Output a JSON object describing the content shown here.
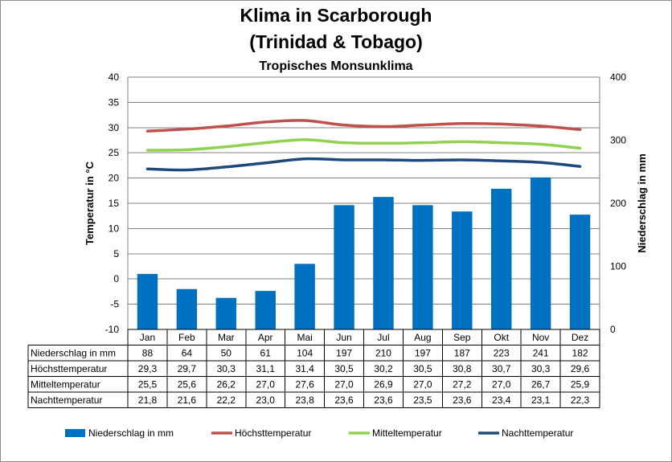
{
  "title_line1": "Klima in Scarborough",
  "title_line2": "(Trinidad & Tobago)",
  "subtitle": "Tropisches Monsunklima",
  "colors": {
    "bar": "#0070C0",
    "hoechst": "#C0504D",
    "mittel": "#92D050",
    "nacht": "#1F497D",
    "grid": "#808080"
  },
  "chart_data": {
    "type": "bar",
    "categories": [
      "Jan",
      "Feb",
      "Mar",
      "Apr",
      "Mai",
      "Jun",
      "Jul",
      "Aug",
      "Sep",
      "Okt",
      "Nov",
      "Dez"
    ],
    "series": [
      {
        "name": "Niederschlag in mm",
        "type": "bar",
        "axis": "right",
        "values": [
          88,
          64,
          50,
          61,
          104,
          197,
          210,
          197,
          187,
          223,
          241,
          182
        ]
      },
      {
        "name": "Höchsttemperatur",
        "type": "line",
        "axis": "left",
        "values": [
          "29,3",
          "29,7",
          "30,3",
          "31,1",
          "31,4",
          "30,5",
          "30,2",
          "30,5",
          "30,8",
          "30,7",
          "30,3",
          "29,6"
        ]
      },
      {
        "name": "Mitteltemperatur",
        "type": "line",
        "axis": "left",
        "values": [
          "25,5",
          "25,6",
          "26,2",
          "27,0",
          "27,6",
          "27,0",
          "26,9",
          "27,0",
          "27,2",
          "27,0",
          "26,7",
          "25,9"
        ]
      },
      {
        "name": "Nachttemperatur",
        "type": "line",
        "axis": "left",
        "values": [
          "21,8",
          "21,6",
          "22,2",
          "23,0",
          "23,8",
          "23,6",
          "23,6",
          "23,5",
          "23,6",
          "23,4",
          "23,1",
          "22,3"
        ]
      }
    ],
    "ylabel": "Temperatur in °C",
    "y2label": "Niederschlag in mm",
    "ylim": [
      -10,
      40
    ],
    "y2lim": [
      0,
      400
    ],
    "yticks": [
      "40",
      "35",
      "30",
      "25",
      "20",
      "15",
      "10",
      "5",
      "0",
      "-5",
      "-10"
    ],
    "y2ticks": [
      "400",
      "300",
      "200",
      "100",
      "0"
    ],
    "grid": true,
    "legend_position": "bottom"
  }
}
